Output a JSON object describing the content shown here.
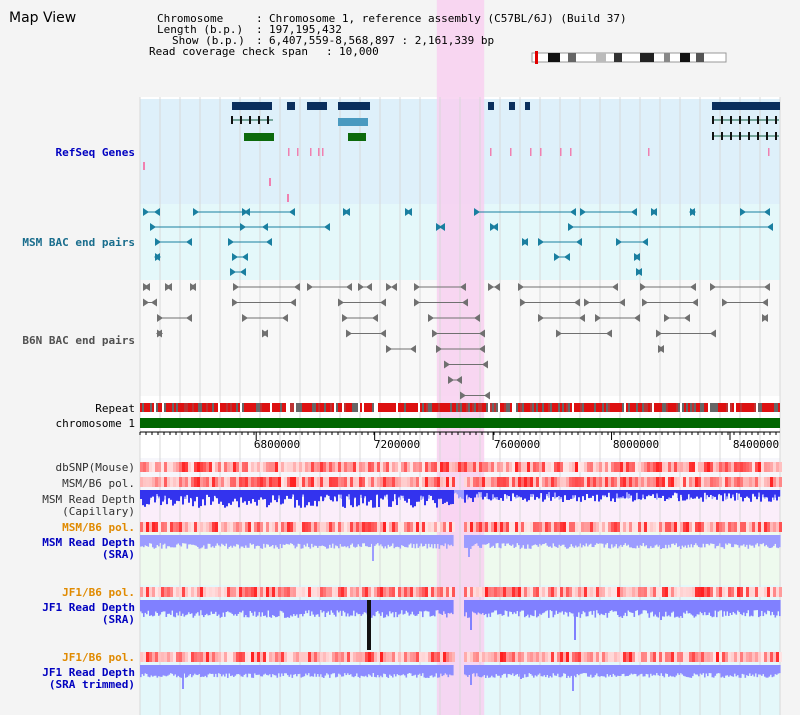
{
  "panel_title": "Map View",
  "info": {
    "chromosome_label": "Chromosome",
    "chromosome_value": "Chromosome 1, reference assembly (C57BL/6J) (Build 37)",
    "length_label": "Length (b.p.)",
    "length_value": "197,195,432",
    "show_label": "Show (b.p.)",
    "show_value": "6,407,559-8,568,897 : 2,161,339 bp",
    "span_label": "Read coverage check span",
    "span_value": "10,000"
  },
  "tracks": {
    "refseq": "RefSeq Genes",
    "msm_bac": "MSM BAC end pairs",
    "b6n_bac": "B6N BAC end pairs",
    "repeat": "Repeat",
    "chromosome": "chromosome 1",
    "dbsnp": "dbSNP(Mouse)",
    "msm_b6_pol": "MSM/B6 pol.",
    "msm_depth_cap": "MSM Read Depth",
    "msm_depth_cap_sub": "(Capillary)",
    "msm_b6_pol2": "MSM/B6 pol.",
    "msm_depth_sra": "MSM Read Depth",
    "msm_depth_sra_sub": "(SRA)",
    "jf1_b6_pol": "JF1/B6 pol.",
    "jf1_depth_sra": "JF1 Read Depth",
    "jf1_depth_sra_sub": "(SRA)",
    "jf1_b6_pol2": "JF1/B6 pol.",
    "jf1_depth_trim": "JF1 Read Depth",
    "jf1_depth_trim_sub": "(SRA trimmed)"
  },
  "axis": {
    "start_bp": 6407559,
    "end_bp": 8568897,
    "ticks": [
      "6800000",
      "7200000",
      "7600000",
      "8000000",
      "8400000"
    ],
    "tick_values": [
      6800000,
      7200000,
      7600000,
      8000000,
      8400000
    ]
  },
  "highlight": {
    "start_bp": 7410000,
    "end_bp": 7570000
  },
  "colors": {
    "refseq_bg": "#def0fa",
    "bac_bg": "#e4f8fa",
    "gene_navy": "#0a2e5c",
    "gene_teal": "#4a9ac0",
    "gene_green": "#0c6a0c",
    "msm_bac": "#1a7fa0",
    "b6n_bac": "#707070",
    "chromosome_bar": "#006600",
    "highlight": "#f8d0f0",
    "depth_blue": "#4444ee"
  }
}
